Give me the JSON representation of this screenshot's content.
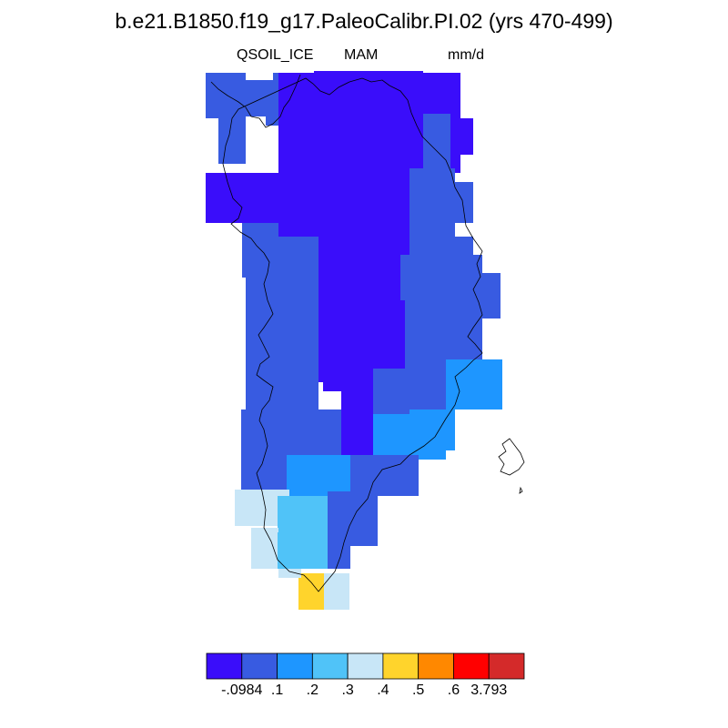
{
  "title": "b.e21.B1850.f19_g17.PaleoCalibr.PI.02 (yrs 470-499)",
  "left_string": "QSOIL_ICE",
  "center_string": "MAM",
  "right_string": "mm/d",
  "colorbar": {
    "colors": [
      "#3a0dfa",
      "#385be1",
      "#1e96ff",
      "#50c3f8",
      "#c8e6f7",
      "#ffd42c",
      "#ff8800",
      "#ff0000",
      "#d42a2a"
    ],
    "labels": [
      "-.0984",
      ".1",
      ".2",
      ".3",
      ".4",
      ".5",
      ".6",
      "3.793"
    ]
  },
  "colors": {
    "coastline": "#000000",
    "background": "#ffffff"
  }
}
